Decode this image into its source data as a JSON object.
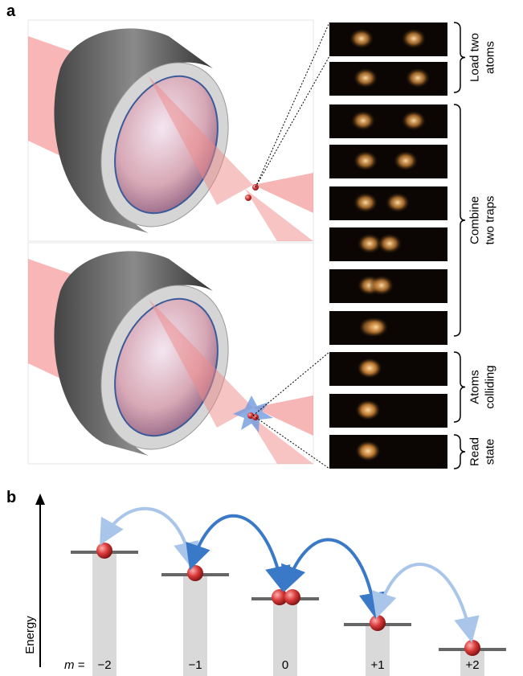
{
  "panel_a": {
    "label": "a",
    "groups": [
      {
        "lines": [
          "Load two",
          "atoms"
        ]
      },
      {
        "lines": [
          "Combine",
          "two traps"
        ]
      },
      {
        "lines": [
          "Atoms",
          "colliding"
        ]
      },
      {
        "lines": [
          "Read",
          "state"
        ]
      }
    ]
  },
  "panel_b": {
    "label": "b",
    "axis_label": "Energy",
    "m_prefix": "m =",
    "levels": [
      "−2",
      "−1",
      "0",
      "+1",
      "+2"
    ]
  }
}
